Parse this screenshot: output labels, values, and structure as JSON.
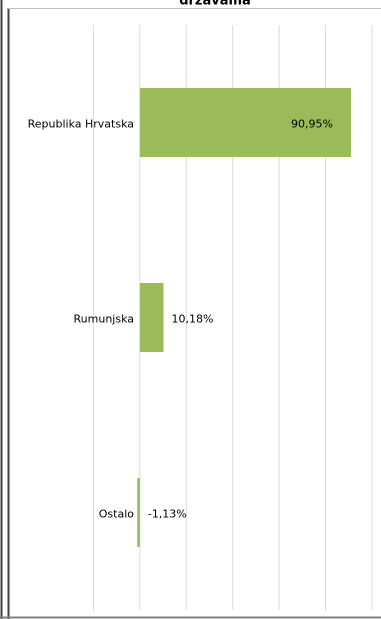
{
  "chart_data": {
    "type": "bar",
    "orientation": "horizontal",
    "title": "državama",
    "categories": [
      "Republika Hrvatska",
      "Rumunjska",
      "Ostalo"
    ],
    "values": [
      90.95,
      10.18,
      -1.13
    ],
    "value_labels": [
      "90,95%",
      "10,18%",
      "-1,13%"
    ],
    "color": "#9bbb59",
    "xlim": [
      -40,
      100
    ],
    "xticks": [
      -20,
      0,
      20,
      40,
      60,
      80,
      100
    ],
    "grid": true
  }
}
